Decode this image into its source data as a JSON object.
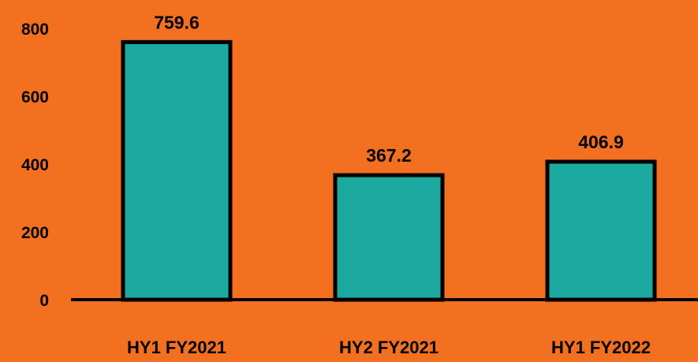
{
  "colors": {
    "background": "#F37021",
    "bar_fill": "#1BA9A0",
    "bar_stroke": "#000000",
    "axis": "#000000"
  },
  "chart_data": {
    "type": "bar",
    "title": "",
    "xlabel": "",
    "ylabel": "",
    "categories": [
      "HY1 FY2021",
      "HY2 FY2021",
      "HY1 FY2022"
    ],
    "values": [
      759.6,
      367.2,
      406.9
    ],
    "value_labels": [
      "759.6",
      "367.2",
      "406.9"
    ],
    "ylim": [
      0,
      800
    ],
    "yticks": [
      0,
      200,
      400,
      600,
      800
    ],
    "ytick_labels": [
      "0",
      "200",
      "400",
      "600",
      "800"
    ],
    "grid": false,
    "legend": "none"
  }
}
